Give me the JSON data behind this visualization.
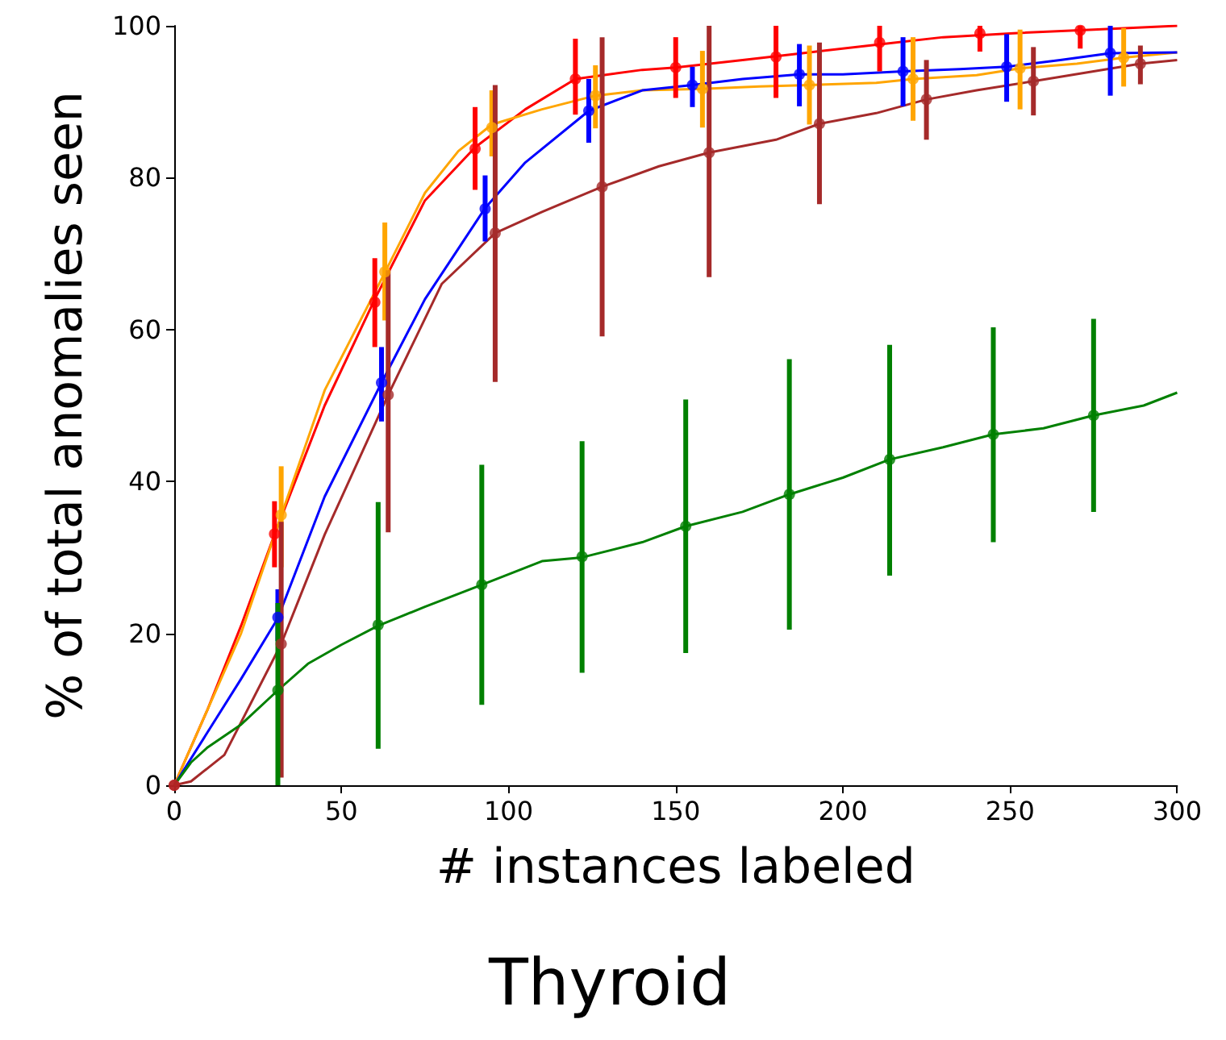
{
  "chart_data": {
    "type": "line",
    "title": "Thyroid",
    "xlabel": "# instances labeled",
    "ylabel": "% of total anomalies seen",
    "xlim": [
      0,
      300
    ],
    "xticks": [
      0,
      50,
      100,
      150,
      200,
      250,
      300
    ],
    "ylim": [
      0,
      100
    ],
    "yticks": [
      0,
      20,
      40,
      60,
      80,
      100
    ],
    "grid": false,
    "series": [
      {
        "color": "#ff0000",
        "marker": "none",
        "x": [
          0,
          10,
          20,
          30,
          45,
          60,
          75,
          90,
          105,
          120,
          140,
          150,
          170,
          190,
          210,
          230,
          250,
          275,
          300
        ],
        "values": [
          0,
          10,
          21,
          33,
          50,
          64,
          77,
          84,
          89,
          93,
          94.2,
          94.5,
          95.5,
          96.5,
          97.5,
          98.5,
          99,
          99.5,
          100
        ]
      },
      {
        "color": "#ffa500",
        "marker": "none",
        "x": [
          0,
          10,
          20,
          32,
          45,
          63,
          75,
          85,
          95,
          110,
          126,
          140,
          158,
          175,
          190,
          210,
          221,
          240,
          253,
          270,
          284,
          300
        ],
        "values": [
          0,
          10,
          20,
          35.5,
          52,
          67.5,
          78,
          83.5,
          87,
          89,
          90.8,
          91.5,
          91.7,
          92,
          92.2,
          92.5,
          93,
          93.5,
          94.4,
          95,
          95.8,
          96.5
        ]
      },
      {
        "color": "#0000ff",
        "marker": "none",
        "x": [
          0,
          10,
          20,
          31,
          45,
          62,
          75,
          93,
          105,
          124,
          140,
          155,
          170,
          187,
          200,
          218,
          235,
          249,
          265,
          280,
          300
        ],
        "values": [
          0,
          7,
          14,
          22,
          38,
          53,
          64,
          76,
          82,
          88.8,
          91.5,
          92.2,
          93,
          93.6,
          93.6,
          94,
          94.3,
          94.6,
          95.5,
          96.4,
          96.5
        ]
      },
      {
        "color": "#a52a2a",
        "marker": "none",
        "x": [
          0,
          5,
          15,
          32,
          45,
          64,
          80,
          96,
          110,
          128,
          145,
          160,
          180,
          193,
          210,
          225,
          240,
          257,
          275,
          289,
          300
        ],
        "values": [
          0,
          0.5,
          4,
          18.6,
          33,
          51.4,
          66,
          72.7,
          75.5,
          78.8,
          81.5,
          83.3,
          85,
          87.1,
          88.5,
          90.3,
          91.5,
          92.7,
          94,
          95,
          95.5
        ]
      },
      {
        "color": "#008000",
        "marker": "none",
        "x": [
          0,
          5,
          10,
          20,
          31,
          40,
          50,
          61,
          75,
          92,
          110,
          122,
          140,
          153,
          170,
          184,
          200,
          214,
          230,
          245,
          260,
          275,
          290,
          300
        ],
        "values": [
          0,
          3,
          5,
          8,
          12.5,
          16,
          18.5,
          21,
          23.5,
          26.4,
          29.5,
          30,
          32,
          34.1,
          36,
          38.3,
          40.5,
          42.9,
          44.5,
          46.2,
          47,
          48.7,
          50,
          51.7
        ]
      },
      {
        "type": "scatter",
        "color": "#ff0000",
        "marker": "circle",
        "x": [
          0,
          30,
          60,
          90,
          120,
          150,
          180,
          211,
          241,
          271
        ],
        "values": [
          0,
          33.1,
          63.6,
          83.8,
          93,
          94.5,
          95.9,
          97.8,
          99,
          99.4
        ],
        "errors": [
          null,
          [
            28.7,
            37.4
          ],
          [
            57.7,
            69.4
          ],
          [
            78.4,
            89.3
          ],
          [
            88.3,
            98.3
          ],
          [
            90.5,
            98.5
          ],
          [
            90.5,
            100
          ],
          [
            94,
            100
          ],
          [
            96.6,
            100
          ],
          [
            97,
            100
          ]
        ]
      },
      {
        "type": "scatter",
        "color": "#ffa500",
        "marker": "circle",
        "x": [
          32,
          63,
          95,
          126,
          158,
          190,
          221,
          253,
          284
        ],
        "values": [
          35.6,
          67.6,
          86.6,
          90.8,
          91.7,
          92.2,
          93,
          94.4,
          95.8
        ],
        "errors": [
          [
            28.7,
            42
          ],
          [
            61.2,
            74.1
          ],
          [
            82.8,
            91.5
          ],
          [
            86.5,
            94.8
          ],
          [
            86.6,
            96.7
          ],
          [
            87,
            97.4
          ],
          [
            87.5,
            98.5
          ],
          [
            89,
            99.5
          ],
          [
            92,
            99.7
          ]
        ]
      },
      {
        "type": "scatter",
        "color": "#0000ff",
        "marker": "circle",
        "x": [
          31,
          62,
          93,
          124,
          155,
          187,
          218,
          249,
          280
        ],
        "values": [
          22.1,
          53,
          75.9,
          88.8,
          92.2,
          93.6,
          94,
          94.6,
          96.4
        ],
        "errors": [
          [
            19,
            25.8
          ],
          [
            47.9,
            57.7
          ],
          [
            71.6,
            80.3
          ],
          [
            84.6,
            93
          ],
          [
            89.3,
            94.6
          ],
          [
            89.4,
            97.6
          ],
          [
            89.4,
            98.5
          ],
          [
            90,
            98.9
          ],
          [
            90.8,
            100
          ]
        ]
      },
      {
        "type": "scatter",
        "color": "#a52a2a",
        "marker": "circle",
        "x": [
          0,
          32,
          64,
          96,
          128,
          160,
          193,
          225,
          257,
          289
        ],
        "values": [
          0,
          18.6,
          51.4,
          72.7,
          78.8,
          83.3,
          87.1,
          90.3,
          92.7,
          95
        ],
        "errors": [
          null,
          [
            1,
            34.7
          ],
          [
            33.3,
            67.8
          ],
          [
            53.1,
            92.2
          ],
          [
            59.1,
            98.5
          ],
          [
            66.9,
            100
          ],
          [
            76.5,
            97.8
          ],
          [
            85,
            95.5
          ],
          [
            88.2,
            97.2
          ],
          [
            92.3,
            97.4
          ]
        ]
      },
      {
        "type": "scatter",
        "color": "#008000",
        "marker": "circle",
        "x": [
          31,
          61,
          92,
          122,
          153,
          184,
          214,
          245,
          275
        ],
        "values": [
          12.5,
          21.1,
          26.4,
          30.1,
          34.1,
          38.3,
          42.9,
          46.2,
          48.7
        ],
        "errors": [
          [
            0,
            24
          ],
          [
            4.8,
            37.3
          ],
          [
            10.6,
            42.2
          ],
          [
            14.8,
            45.3
          ],
          [
            17.4,
            50.8
          ],
          [
            20.5,
            56.1
          ],
          [
            27.6,
            58
          ],
          [
            32,
            60.3
          ],
          [
            36,
            61.4
          ]
        ]
      }
    ]
  }
}
